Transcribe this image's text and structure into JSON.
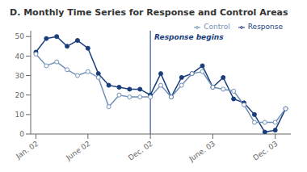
{
  "chart_data": {
    "type": "line",
    "title": "D. Monthly Time Series for Response and Control Areas",
    "x": [
      0,
      1,
      2,
      3,
      4,
      5,
      6,
      7,
      8,
      9,
      10,
      11,
      12,
      13,
      14,
      15,
      16,
      17,
      18,
      19,
      20,
      21,
      22,
      23,
      24
    ],
    "series": [
      {
        "name": "Response",
        "color": "#1a3d7c",
        "marker": "circle",
        "values": [
          42,
          49,
          50,
          45,
          48,
          44,
          31,
          25,
          24,
          23,
          23,
          20,
          31,
          19,
          29,
          31,
          35,
          24,
          29,
          18,
          16,
          10,
          1,
          2,
          13
        ]
      },
      {
        "name": "Control",
        "color": "#7090b8",
        "marker": "open_circle",
        "values": [
          41,
          35,
          37,
          33,
          30,
          32,
          29,
          14,
          20,
          19,
          19,
          19,
          25,
          19,
          25,
          31,
          32,
          24,
          23,
          22,
          15,
          6,
          6,
          6,
          13
        ]
      }
    ],
    "xlim": [
      -0.5,
      24.5
    ],
    "xticks": [
      {
        "value": 0,
        "label": "Jan. 02"
      },
      {
        "value": 5,
        "label": "June 02"
      },
      {
        "value": 11,
        "label": "Dec. 02"
      },
      {
        "value": 17,
        "label": "June. 03"
      },
      {
        "value": 23,
        "label": "Dec. 03"
      }
    ],
    "ylim": [
      0,
      53
    ],
    "yticks": [
      0,
      10,
      20,
      30,
      40,
      50
    ],
    "annotations": [
      {
        "x": 11,
        "text": "Response begins",
        "color": "#1a3d7c"
      }
    ],
    "legend": "upper right",
    "grid": false
  }
}
